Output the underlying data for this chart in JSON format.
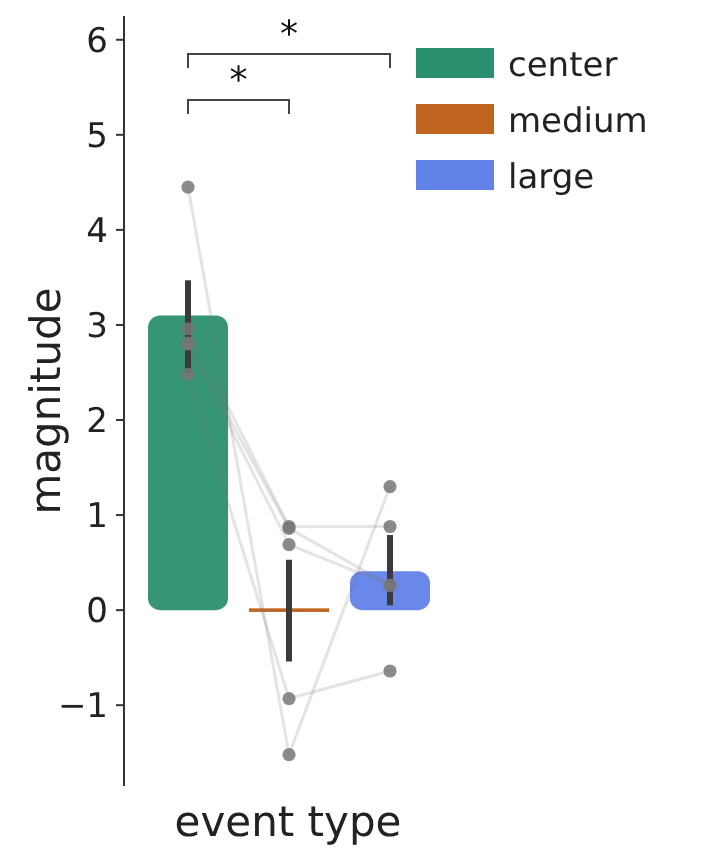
{
  "chart_data": {
    "type": "bar",
    "xlabel": "event type",
    "ylabel": "magnitude",
    "categories": [
      null,
      null,
      null
    ],
    "series": [
      {
        "name": "center",
        "color": "#2a8f6e",
        "values": [
          3.1,
          null,
          null
        ],
        "errors": [
          [
            2.5,
            3.47
          ],
          null,
          null
        ]
      },
      {
        "name": "medium",
        "color": "#c0651f",
        "values": [
          null,
          0,
          null
        ],
        "errors": [
          null,
          [
            -0.54,
            0.53
          ],
          null
        ]
      },
      {
        "name": "large",
        "color": "#6182e8",
        "values": [
          null,
          null,
          0.41
        ],
        "errors": [
          null,
          null,
          [
            0.05,
            0.79
          ]
        ]
      },
      {
        "type": "line",
        "color": "#777777",
        "values": [
          4.45,
          -1.52,
          1.3
        ]
      },
      {
        "type": "line",
        "color": "#777777",
        "values": [
          2.96,
          0.88,
          0.88
        ]
      },
      {
        "type": "line",
        "color": "#777777",
        "values": [
          2.81,
          0.86,
          0.26
        ]
      },
      {
        "type": "line",
        "color": "#777777",
        "values": [
          2.8,
          0.69,
          0.26
        ]
      },
      {
        "type": "line",
        "color": "#777777",
        "values": [
          2.48,
          -0.93,
          -0.64
        ]
      }
    ],
    "marker": "circle",
    "ylim": [
      -1.85,
      6.25
    ],
    "yticks": [
      {
        "value": -1,
        "label": "−1"
      },
      0,
      1,
      2,
      3,
      4,
      5,
      6
    ],
    "annotations": [
      "*",
      "*"
    ],
    "legend": "top right",
    "grid": false
  }
}
